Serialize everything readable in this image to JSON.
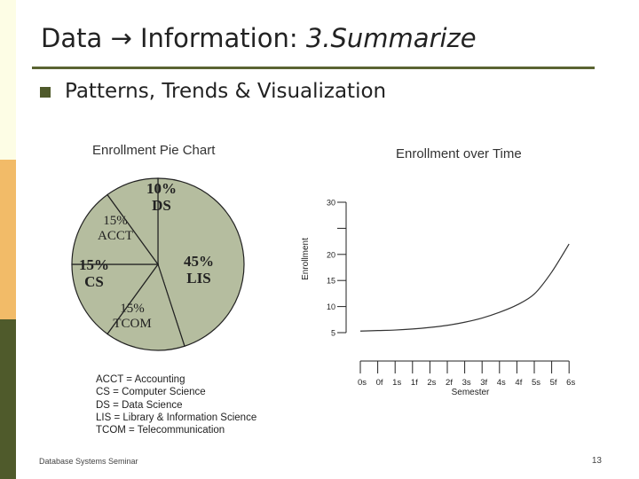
{
  "slide": {
    "title_main": "Data → Information: ",
    "title_sub": "3.Summarize",
    "bullet": "Patterns, Trends & Visualization",
    "footer_left": "Database Systems Seminar",
    "page_number": "13",
    "accent_color": "#5a6432"
  },
  "legend": [
    "ACCT = Accounting",
    "CS = Computer Science",
    "DS = Data Science",
    "LIS = Library & Information Science",
    "TCOM = Telecommunication"
  ],
  "chart_data": [
    {
      "type": "pie",
      "title": "Enrollment Pie Chart",
      "fill_color": "#b5bd9f",
      "slices": [
        {
          "label": "LIS",
          "pct_label": "45%",
          "value": 45
        },
        {
          "label": "TCOM",
          "pct_label": "15%",
          "value": 15
        },
        {
          "label": "CS",
          "pct_label": "15%",
          "value": 15
        },
        {
          "label": "ACCT",
          "pct_label": "15%",
          "value": 15
        },
        {
          "label": "DS",
          "pct_label": "10%",
          "value": 10
        }
      ]
    },
    {
      "type": "line",
      "title": "Enrollment over Time",
      "xlabel": "Semester",
      "ylabel": "Enrollment",
      "ylim": [
        5,
        30
      ],
      "yticks": [
        5,
        10,
        15,
        20,
        25,
        30
      ],
      "ytick_labels": [
        "5",
        "10",
        "15",
        "20",
        "",
        "30"
      ],
      "x": [
        "0s",
        "0f",
        "1s",
        "1f",
        "2s",
        "2f",
        "3s",
        "3f",
        "4s",
        "4f",
        "5s",
        "5f",
        "6s"
      ],
      "values": [
        5.3,
        5.4,
        5.5,
        5.7,
        6.0,
        6.4,
        7.0,
        7.8,
        8.9,
        10.3,
        12.4,
        16.6,
        22.0
      ]
    }
  ]
}
